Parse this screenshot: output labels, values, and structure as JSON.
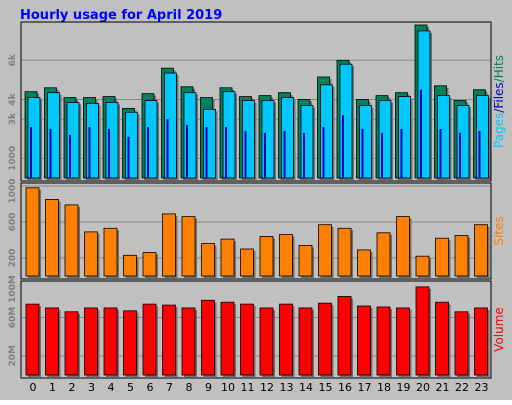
{
  "chart_data": {
    "type": "bar",
    "title": "Hourly usage for April 2019",
    "categories": [
      "0",
      "1",
      "2",
      "3",
      "4",
      "5",
      "6",
      "7",
      "8",
      "9",
      "10",
      "11",
      "12",
      "13",
      "14",
      "15",
      "16",
      "17",
      "18",
      "19",
      "20",
      "21",
      "22",
      "23"
    ],
    "panels": [
      {
        "name": "hits-files-pages",
        "ylabel_parts": [
          "Pages",
          "/",
          "Files",
          "/",
          "Hits"
        ],
        "ylim": [
          0,
          7800
        ],
        "ticks": [
          {
            "value": 1000,
            "label": "1000"
          },
          {
            "value": 3000,
            "label": "3k"
          },
          {
            "value": 4000,
            "label": "4k"
          },
          {
            "value": 6000,
            "label": "6k"
          }
        ],
        "series": [
          {
            "name": "Hits",
            "values": [
              4400,
              4600,
              4100,
              4100,
              4150,
              3550,
              4300,
              5600,
              4650,
              4100,
              4600,
              4150,
              4200,
              4350,
              4000,
              5150,
              6000,
              4000,
              4200,
              4350,
              7800,
              4700,
              3950,
              4500
            ]
          },
          {
            "name": "Files",
            "values": [
              4100,
              4350,
              3850,
              3800,
              3850,
              3350,
              3950,
              5350,
              4350,
              3500,
              4400,
              3950,
              3950,
              4100,
              3700,
              4750,
              5800,
              3700,
              3950,
              4150,
              7500,
              4200,
              3700,
              4200
            ]
          },
          {
            "name": "Pages",
            "values": [
              2600,
              2500,
              2200,
              2600,
              2500,
              2100,
              2600,
              3000,
              2700,
              2600,
              2600,
              2400,
              2300,
              2400,
              2300,
              2600,
              3200,
              2500,
              2300,
              2500,
              4500,
              2500,
              2300,
              2400
            ]
          }
        ]
      },
      {
        "name": "sites",
        "ylabel": "Sites",
        "ylim": [
          0,
          1000
        ],
        "ticks": [
          {
            "value": 200,
            "label": "200"
          },
          {
            "value": 600,
            "label": "600"
          },
          {
            "value": 1000,
            "label": "1000"
          }
        ],
        "series": [
          {
            "name": "Sites",
            "values": [
              980,
              850,
              790,
              490,
              530,
              230,
              260,
              690,
              660,
              360,
              410,
              300,
              440,
              460,
              340,
              570,
              530,
              290,
              480,
              660,
              220,
              420,
              450,
              570
            ]
          }
        ]
      },
      {
        "name": "volume",
        "ylabel": "Volume",
        "ylim": [
          0,
          95
        ],
        "ticks": [
          {
            "value": 20,
            "label": "20M"
          },
          {
            "value": 60,
            "label": "60M"
          },
          {
            "value": 100,
            "label": "100M"
          }
        ],
        "series": [
          {
            "name": "Volume",
            "values": [
              74,
              70,
              66,
              70,
              70,
              67,
              74,
              73,
              70,
              78,
              76,
              74,
              70,
              74,
              70,
              75,
              82,
              72,
              71,
              70,
              92,
              76,
              66,
              70
            ]
          }
        ]
      }
    ],
    "grid": true
  },
  "colors": {
    "background": "#c0c0c0",
    "title": "#0000ff",
    "hits": "#00805c",
    "files": "#00c8ff",
    "pages": "#0000c0",
    "sites": "#ff8000",
    "volume": "#ff0000",
    "grid": "#8a8a8a",
    "panel_bg": "#c0c0c0",
    "axis_text": "#808080",
    "category_text": "#000000"
  }
}
